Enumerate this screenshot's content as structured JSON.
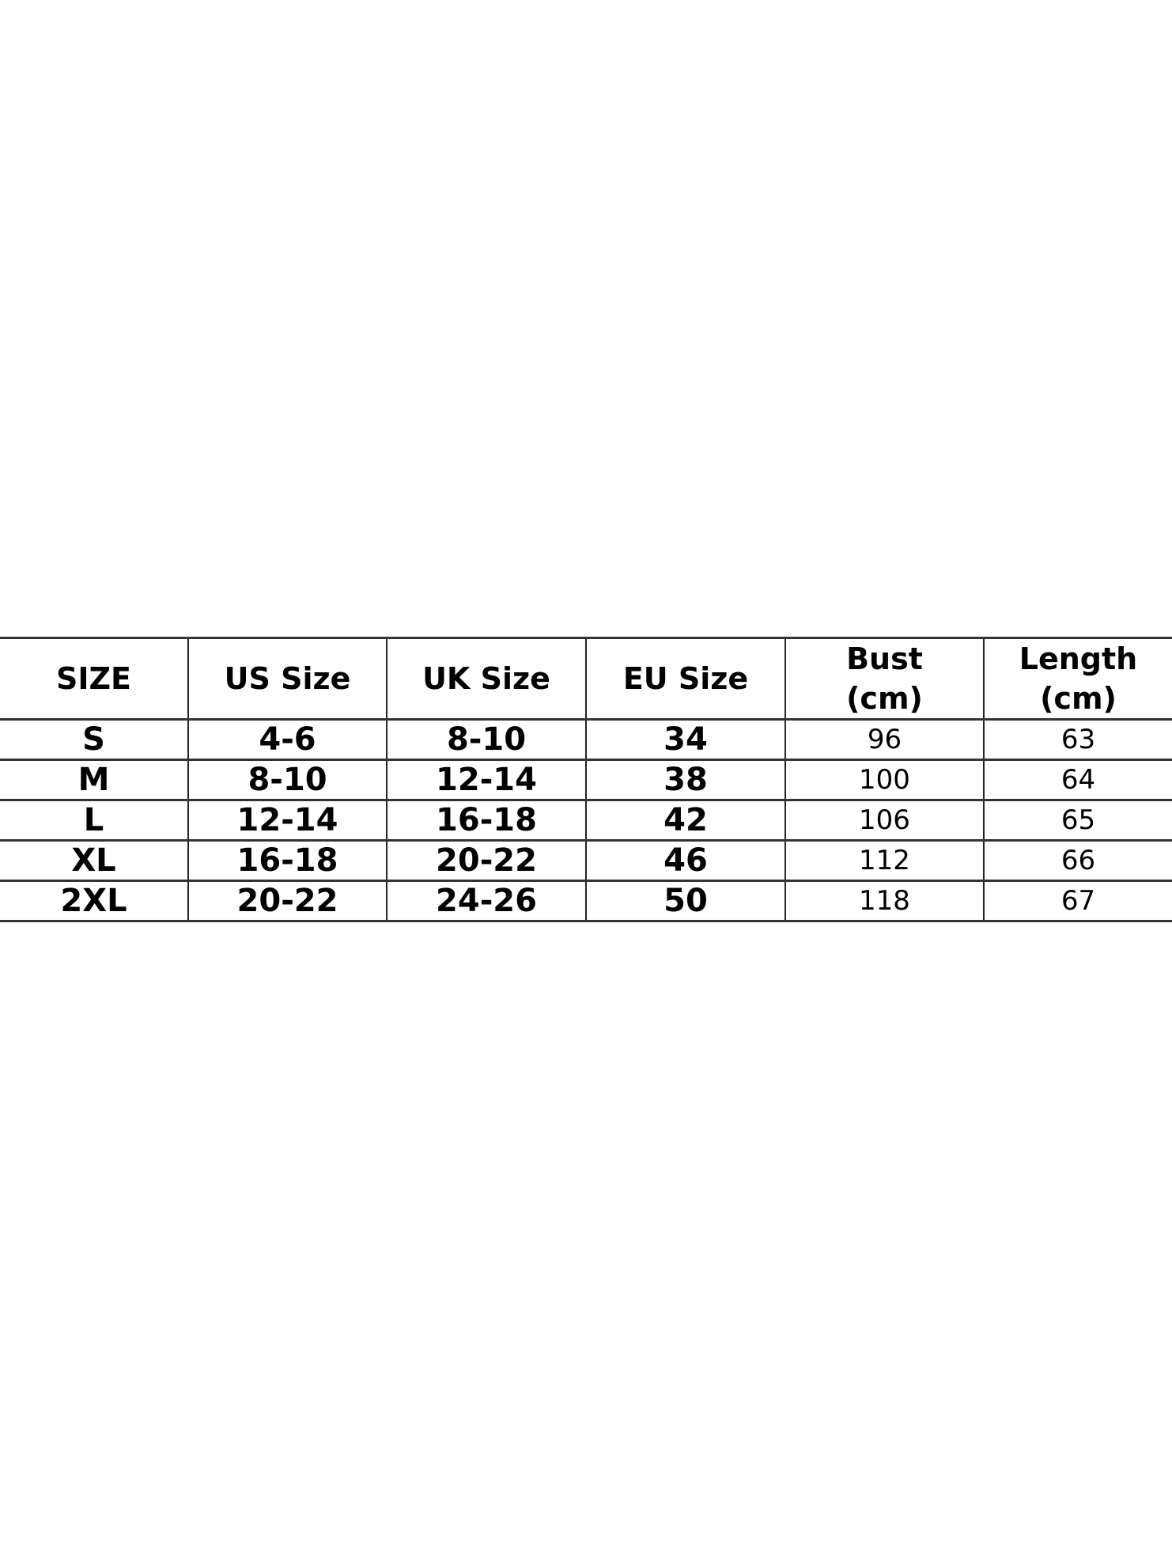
{
  "size_chart": {
    "headers": [
      "SIZE",
      "US Size",
      "UK Size",
      "EU Size",
      "Bust\n(cm)",
      "Length\n(cm)"
    ],
    "header_lines": {
      "bust": [
        "Bust",
        "(cm)"
      ],
      "length": [
        "Length",
        "(cm)"
      ]
    },
    "rows": [
      [
        "S",
        "4-6",
        "8-10",
        "34",
        "96",
        "63"
      ],
      [
        "M",
        "8-10",
        "12-14",
        "38",
        "100",
        "64"
      ],
      [
        "L",
        "12-14",
        "16-18",
        "42",
        "106",
        "65"
      ],
      [
        "XL",
        "16-18",
        "20-22",
        "46",
        "112",
        "66"
      ],
      [
        "2XL",
        "20-22",
        "24-26",
        "50",
        "118",
        "67"
      ]
    ]
  }
}
